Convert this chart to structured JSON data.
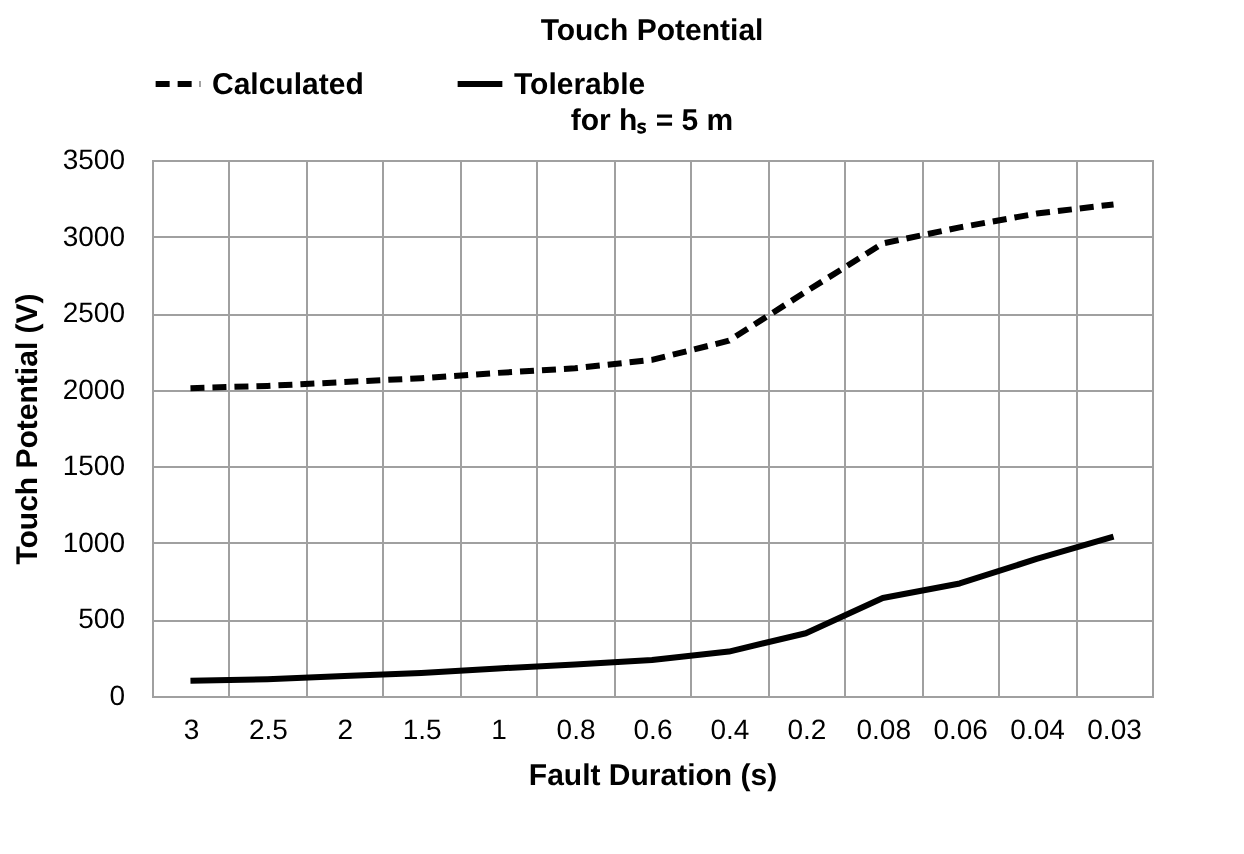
{
  "chart_data": {
    "type": "line",
    "title": "Touch Potential",
    "subtitle": "for hₛ = 5 m",
    "xlabel": "Fault Duration (s)",
    "ylabel": "Touch Potential (V)",
    "categories": [
      "3",
      "2.5",
      "2",
      "1.5",
      "1",
      "0.8",
      "0.6",
      "0.4",
      "0.2",
      "0.08",
      "0.06",
      "0.04",
      "0.03"
    ],
    "series": [
      {
        "name": "Calculated",
        "color": "#000000",
        "line_style": "dashed",
        "values": [
          2010,
          2025,
          2050,
          2075,
          2110,
          2140,
          2195,
          2320,
          2640,
          2955,
          3060,
          3150,
          3210
        ]
      },
      {
        "name": "Tolerable",
        "color": "#000000",
        "line_style": "solid",
        "values": [
          100,
          110,
          130,
          150,
          180,
          205,
          235,
          290,
          410,
          640,
          735,
          895,
          1040
        ]
      }
    ],
    "ylim": [
      0,
      3500
    ],
    "yticks": [
      0,
      500,
      1000,
      1500,
      2000,
      2500,
      3000,
      3500
    ],
    "grid": true,
    "legend": "top"
  }
}
